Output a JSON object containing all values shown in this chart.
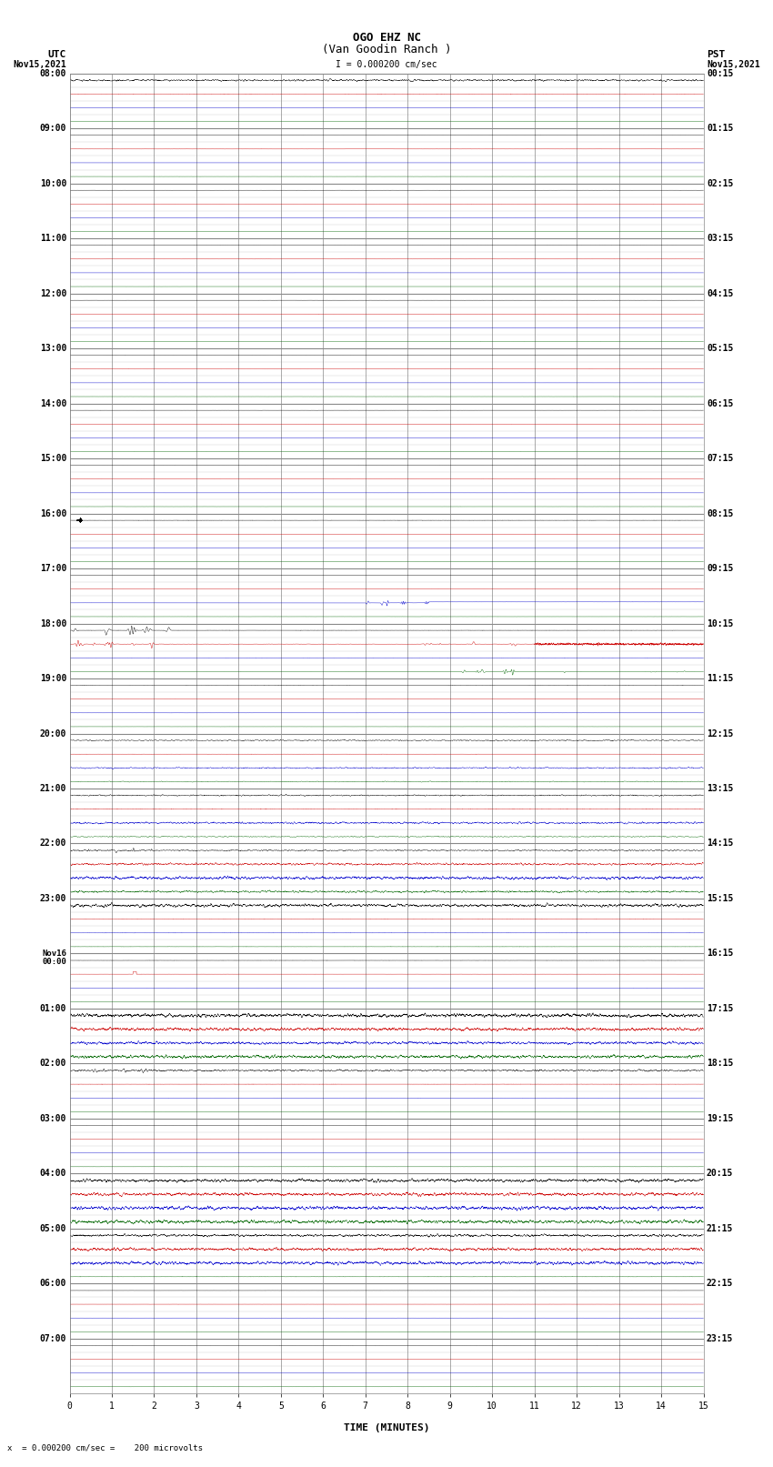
{
  "title_line1": "OGO EHZ NC",
  "title_line2": "(Van Goodin Ranch )",
  "scale_text": "I = 0.000200 cm/sec",
  "bottom_scale_text": "x  = 0.000200 cm/sec =    200 microvolts",
  "left_header_line1": "UTC",
  "left_header_line2": "Nov15,2021",
  "right_header_line1": "PST",
  "right_header_line2": "Nov15,2021",
  "xlabel": "TIME (MINUTES)",
  "utc_labels": [
    "08:00",
    "09:00",
    "10:00",
    "11:00",
    "12:00",
    "13:00",
    "14:00",
    "15:00",
    "16:00",
    "17:00",
    "18:00",
    "19:00",
    "20:00",
    "21:00",
    "22:00",
    "23:00",
    "Nov16\n00:00",
    "01:00",
    "02:00",
    "03:00",
    "04:00",
    "05:00",
    "06:00",
    "07:00"
  ],
  "pst_labels": [
    "00:15",
    "01:15",
    "02:15",
    "03:15",
    "04:15",
    "05:15",
    "06:15",
    "07:15",
    "08:15",
    "09:15",
    "10:15",
    "11:15",
    "12:15",
    "13:15",
    "14:15",
    "15:15",
    "16:15",
    "17:15",
    "18:15",
    "19:15",
    "20:15",
    "21:15",
    "22:15",
    "23:15"
  ],
  "n_rows": 24,
  "n_minutes": 15,
  "traces_per_row": 4,
  "background_color": "#ffffff",
  "grid_major_color": "#888888",
  "grid_minor_color": "#cccccc",
  "trace_colors": [
    "#000000",
    "#cc0000",
    "#0000cc",
    "#006600"
  ],
  "figsize": [
    8.5,
    16.13
  ],
  "dpi": 100,
  "title_fontsize": 9,
  "label_fontsize": 8,
  "tick_fontsize": 7
}
